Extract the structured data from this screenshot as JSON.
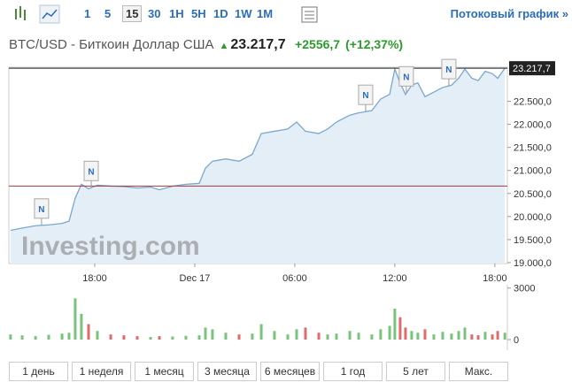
{
  "toolbar": {
    "intervals": [
      "1",
      "5",
      "15",
      "30",
      "1H",
      "5H",
      "1D",
      "1W",
      "1M"
    ],
    "stream_link": "Потоковый график »"
  },
  "header": {
    "name": "BTC/USD - Биткоин Доллар США",
    "price": "23.217,7",
    "change": "+2556,7",
    "change_percent": "(+12,37%)"
  },
  "ranges": [
    "1 день",
    "1 неделя",
    "1 месяц",
    "3 месяца",
    "6 месяцев",
    "1 год",
    "5 лет",
    "Макс."
  ],
  "chart_data": [
    {
      "type": "area",
      "color": "#7aa7cf",
      "fill": "#e4eef6",
      "watermark": "Investing.com",
      "x": [
        12.95,
        13.65,
        14.45,
        15.24,
        16.04,
        16.46,
        16.83,
        17.2,
        17.63,
        18.16,
        18.96,
        19.75,
        20.55,
        21.35,
        21.88,
        22.67,
        23.47,
        24.27,
        24.64,
        25.06,
        25.86,
        26.66,
        27.45,
        27.99,
        28.78,
        29.58,
        30.11,
        30.64,
        31.44,
        31.97,
        32.5,
        33.3,
        33.83,
        34.62,
        35.15,
        35.69,
        36.0,
        36.32,
        36.64,
        37.01,
        37.38,
        37.81,
        38.34,
        38.87,
        39.4,
        39.83,
        40.2,
        40.62,
        41.0,
        41.42,
        41.85,
        42.17,
        42.6
      ],
      "values": [
        19700,
        19750,
        19800,
        19820,
        19850,
        19900,
        20400,
        20700,
        20600,
        20680,
        20660,
        20650,
        20620,
        20640,
        20580,
        20660,
        20700,
        20720,
        21050,
        21200,
        21250,
        21200,
        21350,
        21800,
        21850,
        21900,
        22050,
        21850,
        21800,
        21900,
        22050,
        22200,
        22250,
        22300,
        22550,
        22650,
        23200,
        22900,
        22650,
        22850,
        22900,
        22600,
        22700,
        22800,
        22850,
        23000,
        23200,
        23000,
        22950,
        23150,
        23100,
        23000,
        23217.7
      ],
      "xlim": [
        12.85,
        42.75
      ],
      "ylim": [
        18980,
        23240
      ],
      "xticks": [
        {
          "value": 18,
          "label": "18:00"
        },
        {
          "value": 24,
          "label": "Dec 17"
        },
        {
          "value": 30,
          "label": "06:00"
        },
        {
          "value": 36,
          "label": "12:00"
        },
        {
          "value": 42,
          "label": "18:00"
        }
      ],
      "yticks": [
        {
          "value": 19000,
          "label": "19.000,0"
        },
        {
          "value": 19500,
          "label": "19.500,0"
        },
        {
          "value": 20000,
          "label": "20.000,0"
        },
        {
          "value": 20500,
          "label": "20.500,0"
        },
        {
          "value": 21000,
          "label": "21.000,0"
        },
        {
          "value": 21500,
          "label": "21.500,0"
        },
        {
          "value": 22000,
          "label": "22.000,0"
        },
        {
          "value": 22500,
          "label": "22.500,0"
        }
      ],
      "hlines": [
        {
          "value": 23217.7,
          "label": "23.217,7",
          "color": "#222222"
        },
        {
          "value": 20661,
          "color": "#a33a3a"
        }
      ],
      "annotations": [
        {
          "x": 14.81,
          "label": "N"
        },
        {
          "x": 17.79,
          "label": "N"
        },
        {
          "x": 34.25,
          "label": "N"
        },
        {
          "x": 36.69,
          "label": "N"
        },
        {
          "x": 39.24,
          "label": "N"
        }
      ]
    },
    {
      "type": "bar",
      "x": [
        12.95,
        13.65,
        14.45,
        15.24,
        16.04,
        16.46,
        16.83,
        17.2,
        17.63,
        18.16,
        18.96,
        19.75,
        20.55,
        21.35,
        21.88,
        22.67,
        23.47,
        24.27,
        24.64,
        25.06,
        25.86,
        26.66,
        27.45,
        27.99,
        28.78,
        29.58,
        30.11,
        30.64,
        31.44,
        31.97,
        32.5,
        33.3,
        33.83,
        34.62,
        35.15,
        35.69,
        36.0,
        36.32,
        36.64,
        37.01,
        37.38,
        37.81,
        38.34,
        38.87,
        39.4,
        39.83,
        40.2,
        40.62,
        41.0,
        41.42,
        41.85,
        42.17,
        42.6
      ],
      "values": [
        300,
        250,
        200,
        280,
        350,
        400,
        2400,
        1500,
        900,
        500,
        300,
        250,
        200,
        150,
        200,
        180,
        220,
        250,
        700,
        600,
        400,
        300,
        350,
        900,
        500,
        300,
        600,
        700,
        400,
        300,
        350,
        500,
        400,
        300,
        600,
        800,
        1800,
        1300,
        700,
        500,
        400,
        600,
        300,
        450,
        350,
        500,
        700,
        300,
        250,
        450,
        300,
        500,
        400
      ],
      "colors": [
        "#79c47c",
        "#79c47c",
        "#79c47c",
        "#79c47c",
        "#79c47c",
        "#79c47c",
        "#79c47c",
        "#79c47c",
        "#e06b6b",
        "#79c47c",
        "#e06b6b",
        "#e06b6b",
        "#e06b6b",
        "#79c47c",
        "#e06b6b",
        "#79c47c",
        "#79c47c",
        "#79c47c",
        "#79c47c",
        "#79c47c",
        "#79c47c",
        "#e06b6b",
        "#79c47c",
        "#79c47c",
        "#79c47c",
        "#79c47c",
        "#79c47c",
        "#e06b6b",
        "#e06b6b",
        "#79c47c",
        "#79c47c",
        "#79c47c",
        "#79c47c",
        "#79c47c",
        "#79c47c",
        "#79c47c",
        "#79c47c",
        "#e06b6b",
        "#e06b6b",
        "#79c47c",
        "#79c47c",
        "#e06b6b",
        "#79c47c",
        "#79c47c",
        "#79c47c",
        "#79c47c",
        "#79c47c",
        "#e06b6b",
        "#e06b6b",
        "#79c47c",
        "#e06b6b",
        "#e06b6b",
        "#79c47c"
      ],
      "xlim": [
        12.85,
        42.75
      ],
      "ylim": [
        0,
        3500
      ],
      "yticks": [
        0,
        3000
      ]
    }
  ]
}
